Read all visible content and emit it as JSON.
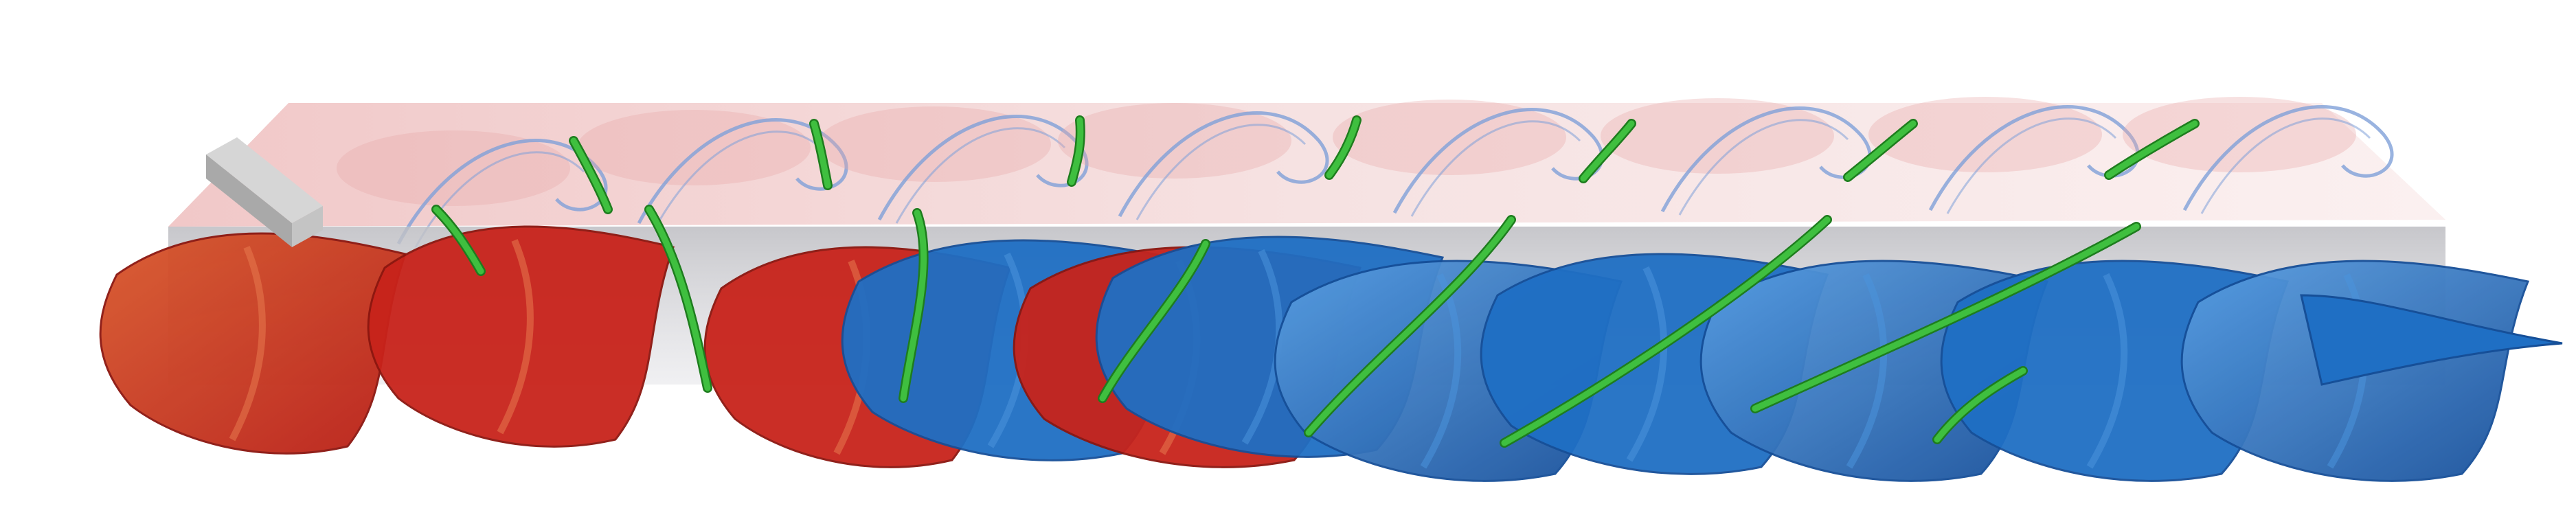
{
  "scene": {
    "background": "#ffffff",
    "colors": {
      "slice_light": "#f3dede",
      "slice_pink": "#e8a8a8",
      "slice_band_gray": "#c9c9cc",
      "contour_blue": "#7fa0d8",
      "surface_red": "#c8231b",
      "surface_orange": "#d2522a",
      "surface_blue": "#1f6fc4",
      "surface_blue_light": "#4a93dc",
      "surface_blue_dark": "#164f98",
      "filament_green": "#3fbf3f",
      "filament_green_dark": "#1e7d1e",
      "obstacle_gray": "#b8b8b8"
    },
    "elements": {
      "obstacle": "rectangular-cylinder",
      "slice": "vorticity-slice",
      "surfaces": "vortex-isosurfaces",
      "filaments": "vortex-core-lines"
    }
  }
}
